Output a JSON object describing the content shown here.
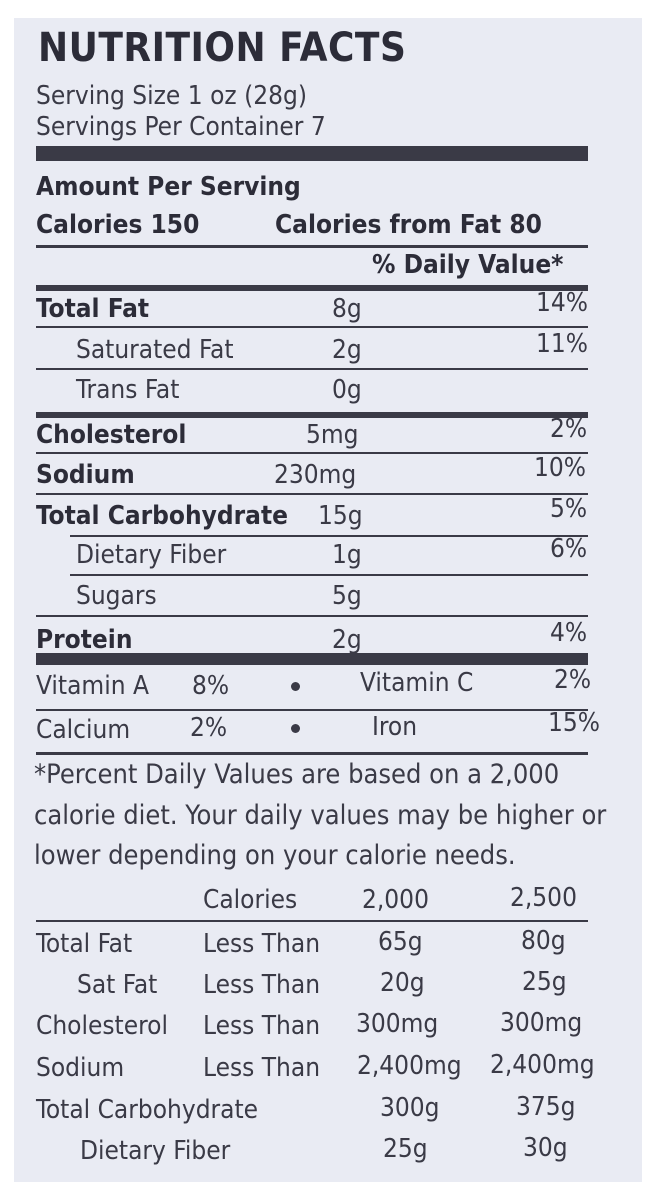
{
  "label": {
    "title": "NUTRITION FACTS",
    "serving_size": "Serving Size 1 oz (28g)",
    "servings_per_container": "Servings Per Container 7",
    "amount_per_serving": "Amount Per Serving",
    "calories": "Calories 150",
    "calories_from_fat": "Calories from Fat 80",
    "dv_header": "% Daily Value*"
  },
  "nutrients": [
    {
      "name": "Total Fat",
      "amount": "8g",
      "dv": "14%"
    },
    {
      "name": "Saturated Fat",
      "amount": "2g",
      "dv": "11%"
    },
    {
      "name": "Trans Fat",
      "amount": "0g",
      "dv": ""
    },
    {
      "name": "Cholesterol",
      "amount": "5mg",
      "dv": "2%"
    },
    {
      "name": "Sodium",
      "amount": "230mg",
      "dv": "10%"
    },
    {
      "name": "Total Carbohydrate",
      "amount": "15g",
      "dv": "5%"
    },
    {
      "name": "Dietary Fiber",
      "amount": "1g",
      "dv": "6%"
    },
    {
      "name": "Sugars",
      "amount": "5g",
      "dv": ""
    },
    {
      "name": "Protein",
      "amount": "2g",
      "dv": "4%"
    }
  ],
  "vitamins": [
    {
      "left_name": "Vitamin A",
      "left_value": "8%",
      "right_name": "Vitamin C",
      "right_value": "2%"
    },
    {
      "left_name": "Calcium",
      "left_value": "2%",
      "right_name": "Iron",
      "right_value": "15%"
    }
  ],
  "footnote": [
    "*Percent Daily Values are based on a 2,000",
    "calorie diet. Your daily values may be higher or",
    "lower depending on your calorie needs."
  ],
  "reference_table": {
    "header": {
      "label": "Calories",
      "col1": "2,000",
      "col2": "2,500"
    },
    "rows": [
      {
        "name": "Total Fat",
        "qualifier": "Less Than",
        "col1": "65g",
        "col2": "80g"
      },
      {
        "name": "Sat Fat",
        "qualifier": "Less Than",
        "col1": "20g",
        "col2": "25g"
      },
      {
        "name": "Cholesterol",
        "qualifier": "Less Than",
        "col1": "300mg",
        "col2": "300mg"
      },
      {
        "name": "Sodium",
        "qualifier": "Less Than",
        "col1": "2,400mg",
        "col2": "2,400mg"
      },
      {
        "name": "Total Carbohydrate",
        "qualifier": "",
        "col1": "300g",
        "col2": "375g"
      },
      {
        "name": "Dietary Fiber",
        "qualifier": "",
        "col1": "25g",
        "col2": "30g"
      }
    ]
  }
}
